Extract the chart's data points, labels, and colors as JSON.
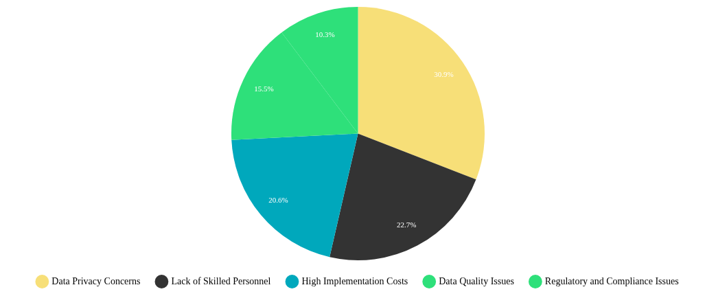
{
  "chart_data": {
    "type": "pie",
    "categories": [
      "Data Privacy Concerns",
      "Lack of Skilled Personnel",
      "High Implementation Costs",
      "Data Quality Issues",
      "Regulatory and Compliance Issues"
    ],
    "values": [
      30.9,
      22.7,
      20.6,
      15.5,
      10.3
    ],
    "value_labels": [
      "30.9%",
      "22.7%",
      "20.6%",
      "15.5%",
      "10.3%"
    ],
    "colors": [
      "#f7df78",
      "#333333",
      "#00a8bc",
      "#2ee07a",
      "#2ee07a"
    ],
    "legend": "bottom"
  }
}
